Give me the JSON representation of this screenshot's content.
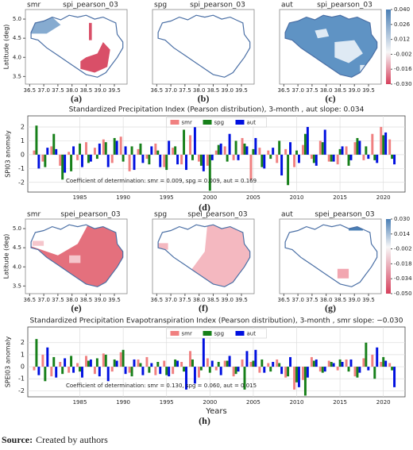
{
  "chart_data": [
    {
      "type": "map",
      "season": "smr",
      "variable": "spi_pearson_03",
      "panel": "(a)",
      "ylabel": "Latitude (deg)",
      "xlim": [
        36.35,
        39.95
      ],
      "ylim": [
        3.3,
        5.25
      ],
      "xticks": [
        {
          "value": 36.5,
          "label": "36.5"
        },
        {
          "value": 37,
          "label": "37.0"
        },
        {
          "value": 37.5,
          "label": "37.5"
        },
        {
          "value": 38,
          "label": "38.0"
        },
        {
          "value": 38.5,
          "label": "38.5"
        },
        {
          "value": 39,
          "label": "39.0"
        },
        {
          "value": 39.5,
          "label": "39.5"
        }
      ],
      "yticks": [
        {
          "value": 3.5,
          "label": "3.5"
        },
        {
          "value": 4,
          "label": "4.0"
        },
        {
          "value": 4.5,
          "label": "4.5"
        },
        {
          "value": 5,
          "label": "5.0"
        }
      ]
    },
    {
      "type": "map",
      "season": "spg",
      "variable": "spi_pearson_03",
      "panel": "(b)",
      "xlim": [
        36.35,
        39.95
      ],
      "ylim": [
        3.3,
        5.25
      ],
      "xticks": [
        {
          "value": 36.5,
          "label": "36.5"
        },
        {
          "value": 37,
          "label": "37.0"
        },
        {
          "value": 37.5,
          "label": "37.5"
        },
        {
          "value": 38,
          "label": "38.0"
        },
        {
          "value": 38.5,
          "label": "38.5"
        },
        {
          "value": 39,
          "label": "39.0"
        },
        {
          "value": 39.5,
          "label": "39.5"
        }
      ]
    },
    {
      "type": "map",
      "season": "aut",
      "variable": "spi_pearson_03",
      "panel": "(c)",
      "xlim": [
        36.35,
        39.95
      ],
      "ylim": [
        3.3,
        5.25
      ],
      "xticks": [
        {
          "value": 36.5,
          "label": "36.5"
        },
        {
          "value": 37,
          "label": "37.0"
        },
        {
          "value": 37.5,
          "label": "37.5"
        },
        {
          "value": 38,
          "label": "38.0"
        },
        {
          "value": 38.5,
          "label": "38.5"
        },
        {
          "value": 39,
          "label": "39.0"
        },
        {
          "value": 39.5,
          "label": "39.5"
        }
      ],
      "colorbar": {
        "clim": [
          -0.03,
          0.04
        ],
        "ticks": [
          {
            "value": 0.04,
            "label": "0.040"
          },
          0.026,
          0.012,
          -0.002,
          -0.016,
          {
            "value": -0.03,
            "label": "-0.030"
          }
        ]
      }
    },
    {
      "type": "bar",
      "title": "Standardized Precipitation Index (Pearson distribution), 3-month , aut  slope: 0.034",
      "annotation": "Coefficient of determination: smr = 0.009, spg = 0.009, aut = 0.169",
      "ylabel": "SPI03 anomaly",
      "panel": "(d)",
      "grid": true,
      "legend": "upper center",
      "x": [
        1980,
        1981,
        1982,
        1983,
        1984,
        1985,
        1986,
        1987,
        1988,
        1989,
        1990,
        1991,
        1992,
        1993,
        1994,
        1995,
        1996,
        1997,
        1998,
        1999,
        2000,
        2001,
        2002,
        2003,
        2004,
        2005,
        2006,
        2007,
        2008,
        2009,
        2010,
        2011,
        2012,
        2013,
        2014,
        2015,
        2016,
        2017,
        2018,
        2019,
        2020,
        2021
      ],
      "xlim": [
        1979,
        2022.5
      ],
      "xticks": [
        1985,
        1990,
        1995,
        2000,
        2005,
        2010,
        2015,
        2020
      ],
      "ylim": [
        -2.7,
        2.8
      ],
      "yticks": [
        -2,
        -1,
        0,
        1,
        2
      ],
      "series": [
        {
          "name": "smr",
          "color": "#f08080",
          "values": [
            0.3,
            -0.5,
            0.6,
            -0.8,
            0.2,
            -0.4,
            0.9,
            0.5,
            1.1,
            -0.6,
            1.3,
            -1.2,
            0.4,
            -0.3,
            0.8,
            -0.9,
            0.5,
            -0.7,
            1.4,
            -0.5,
            -0.8,
            0.3,
            0.6,
            -0.4,
            1.2,
            -1.8,
            0.5,
            0.3,
            -0.6,
            0.4,
            -0.9,
            0.7,
            -0.3,
            1.0,
            -0.5,
            -0.7,
            0.6,
            0.9,
            -0.4,
            1.5,
            2.0,
            1.1
          ]
        },
        {
          "name": "spg",
          "color": "#17801a",
          "values": [
            2.1,
            -0.9,
            1.5,
            -1.8,
            -1.2,
            0.8,
            -0.6,
            -0.3,
            0.9,
            1.2,
            -0.5,
            0.6,
            0.8,
            -0.7,
            0.3,
            -1.1,
            0.6,
            1.8,
            -0.4,
            -0.8,
            -2.6,
            0.7,
            -0.5,
            1.0,
            0.8,
            0.4,
            -0.9,
            -0.3,
            1.0,
            -2.2,
            0.3,
            1.5,
            -0.6,
            0.9,
            -0.5,
            0.4,
            -0.8,
            1.2,
            0.6,
            -0.4,
            1.4,
            -0.3
          ]
        },
        {
          "name": "aut",
          "color": "#0010e0",
          "values": [
            -1.0,
            0.5,
            0.4,
            -1.3,
            0.6,
            -0.9,
            -0.5,
            0.8,
            -0.9,
            1.0,
            0.6,
            -1.1,
            -0.6,
            0.6,
            -0.9,
            1.0,
            -0.7,
            -1.1,
            2.4,
            -1.2,
            -0.4,
            0.8,
            1.5,
            -0.4,
            0.6,
            1.2,
            -1.0,
            0.5,
            -1.5,
            0.9,
            -0.6,
            2.0,
            -0.8,
            1.8,
            -0.5,
            0.6,
            -0.4,
            1.0,
            -0.3,
            -0.6,
            1.6,
            -0.7
          ]
        }
      ]
    },
    {
      "type": "map",
      "season": "smr",
      "variable": "spei_pearson_03",
      "panel": "(e)",
      "ylabel": "Latitude (deg)",
      "xlim": [
        36.35,
        39.95
      ],
      "ylim": [
        3.3,
        5.25
      ],
      "xticks": [
        {
          "value": 36.5,
          "label": "36.5"
        },
        {
          "value": 37,
          "label": "37.0"
        },
        {
          "value": 37.5,
          "label": "37.5"
        },
        {
          "value": 38,
          "label": "38.0"
        },
        {
          "value": 38.5,
          "label": "38.5"
        },
        {
          "value": 39,
          "label": "39.0"
        },
        {
          "value": 39.5,
          "label": "39.5"
        }
      ],
      "yticks": [
        {
          "value": 3.5,
          "label": "3.5"
        },
        {
          "value": 4,
          "label": "4.0"
        },
        {
          "value": 4.5,
          "label": "4.5"
        },
        {
          "value": 5,
          "label": "5.0"
        }
      ]
    },
    {
      "type": "map",
      "season": "spg",
      "variable": "spei_pearson_03",
      "panel": "(f)",
      "xlim": [
        36.35,
        39.95
      ],
      "ylim": [
        3.3,
        5.25
      ],
      "xticks": [
        {
          "value": 36.5,
          "label": "36.5"
        },
        {
          "value": 37,
          "label": "37.0"
        },
        {
          "value": 37.5,
          "label": "37.5"
        },
        {
          "value": 38,
          "label": "38.0"
        },
        {
          "value": 38.5,
          "label": "38.5"
        },
        {
          "value": 39,
          "label": "39.0"
        },
        {
          "value": 39.5,
          "label": "39.5"
        }
      ]
    },
    {
      "type": "map",
      "season": "aut",
      "variable": "spei_pearson_03",
      "panel": "(g)",
      "xlim": [
        36.35,
        39.95
      ],
      "ylim": [
        3.3,
        5.25
      ],
      "xticks": [
        {
          "value": 36.5,
          "label": "36.5"
        },
        {
          "value": 37,
          "label": "37.0"
        },
        {
          "value": 37.5,
          "label": "37.5"
        },
        {
          "value": 38,
          "label": "38.0"
        },
        {
          "value": 38.5,
          "label": "38.5"
        },
        {
          "value": 39,
          "label": "39.0"
        },
        {
          "value": 39.5,
          "label": "39.5"
        }
      ],
      "colorbar": {
        "clim": [
          -0.05,
          0.03
        ],
        "ticks": [
          {
            "value": 0.03,
            "label": "0.030"
          },
          0.014,
          -0.002,
          -0.018,
          -0.034,
          {
            "value": -0.05,
            "label": "-0.050"
          }
        ]
      }
    },
    {
      "type": "bar",
      "title": "Standardized Precipitation Evapotranspiration Index (Pearson distribution), 3-month , smr  slope: −0.030",
      "annotation": "Coefficient of determination: smr = 0.130, spg = 0.060, aut = 0.015",
      "ylabel": "SPEI03 anomaly",
      "xlabel": "Years",
      "panel": "(h)",
      "grid": true,
      "legend": "upper center",
      "x": [
        1980,
        1981,
        1982,
        1983,
        1984,
        1985,
        1986,
        1987,
        1988,
        1989,
        1990,
        1991,
        1992,
        1993,
        1994,
        1995,
        1996,
        1997,
        1998,
        1999,
        2000,
        2001,
        2002,
        2003,
        2004,
        2005,
        2006,
        2007,
        2008,
        2009,
        2010,
        2011,
        2012,
        2013,
        2014,
        2015,
        2016,
        2017,
        2018,
        2019,
        2020,
        2021
      ],
      "xlim": [
        1979,
        2022.5
      ],
      "xticks": [
        1985,
        1990,
        1995,
        2000,
        2005,
        2010,
        2015,
        2020
      ],
      "ylim": [
        -2.5,
        3.3
      ],
      "yticks": [
        -2,
        -1,
        0,
        1,
        2
      ],
      "series": [
        {
          "name": "smr",
          "color": "#f08080",
          "values": [
            -0.3,
            1.0,
            -0.8,
            0.4,
            -0.5,
            0.3,
            0.9,
            -0.6,
            1.1,
            -0.4,
            1.2,
            -0.5,
            0.6,
            0.8,
            -0.7,
            0.5,
            -0.6,
            0.4,
            1.3,
            -0.9,
            0.7,
            -0.3,
            0.5,
            -0.8,
            0.6,
            0.4,
            -0.5,
            0.3,
            0.6,
            -0.9,
            -1.9,
            -1.1,
            0.8,
            -0.4,
            0.5,
            -0.3,
            0.6,
            -0.8,
            0.7,
            1.0,
            0.4,
            0.3
          ]
        },
        {
          "name": "spg",
          "color": "#17801a",
          "values": [
            2.3,
            -1.2,
            0.8,
            -0.6,
            0.9,
            -0.4,
            0.5,
            0.7,
            1.0,
            0.6,
            1.4,
            -0.8,
            0.3,
            -0.5,
            0.4,
            -0.7,
            0.6,
            -0.4,
            0.6,
            -0.3,
            -0.5,
            0.4,
            0.5,
            -0.6,
            -1.9,
            0.5,
            0.6,
            -0.4,
            0.3,
            -0.8,
            -1.3,
            -2.4,
            0.5,
            -0.5,
            0.4,
            0.6,
            -0.4,
            -0.9,
            2.0,
            -1.0,
            0.8,
            -0.3
          ]
        },
        {
          "name": "aut",
          "color": "#0010e0",
          "values": [
            -0.7,
            1.6,
            -0.9,
            0.7,
            -0.5,
            -0.9,
            0.6,
            -0.8,
            -1.2,
            0.5,
            -0.6,
            0.6,
            -0.7,
            0.3,
            -0.6,
            -0.8,
            0.5,
            -1.9,
            -1.4,
            2.6,
            0.5,
            -0.7,
            0.9,
            -0.4,
            1.3,
            1.4,
            -0.5,
            0.4,
            -0.6,
            0.8,
            -1.7,
            -0.9,
            0.6,
            -0.4,
            0.3,
            0.4,
            0.6,
            -0.5,
            -0.3,
            1.6,
            0.5,
            -1.7
          ]
        }
      ]
    }
  ],
  "source": {
    "label": "Source:",
    "text": "Created by authors"
  }
}
